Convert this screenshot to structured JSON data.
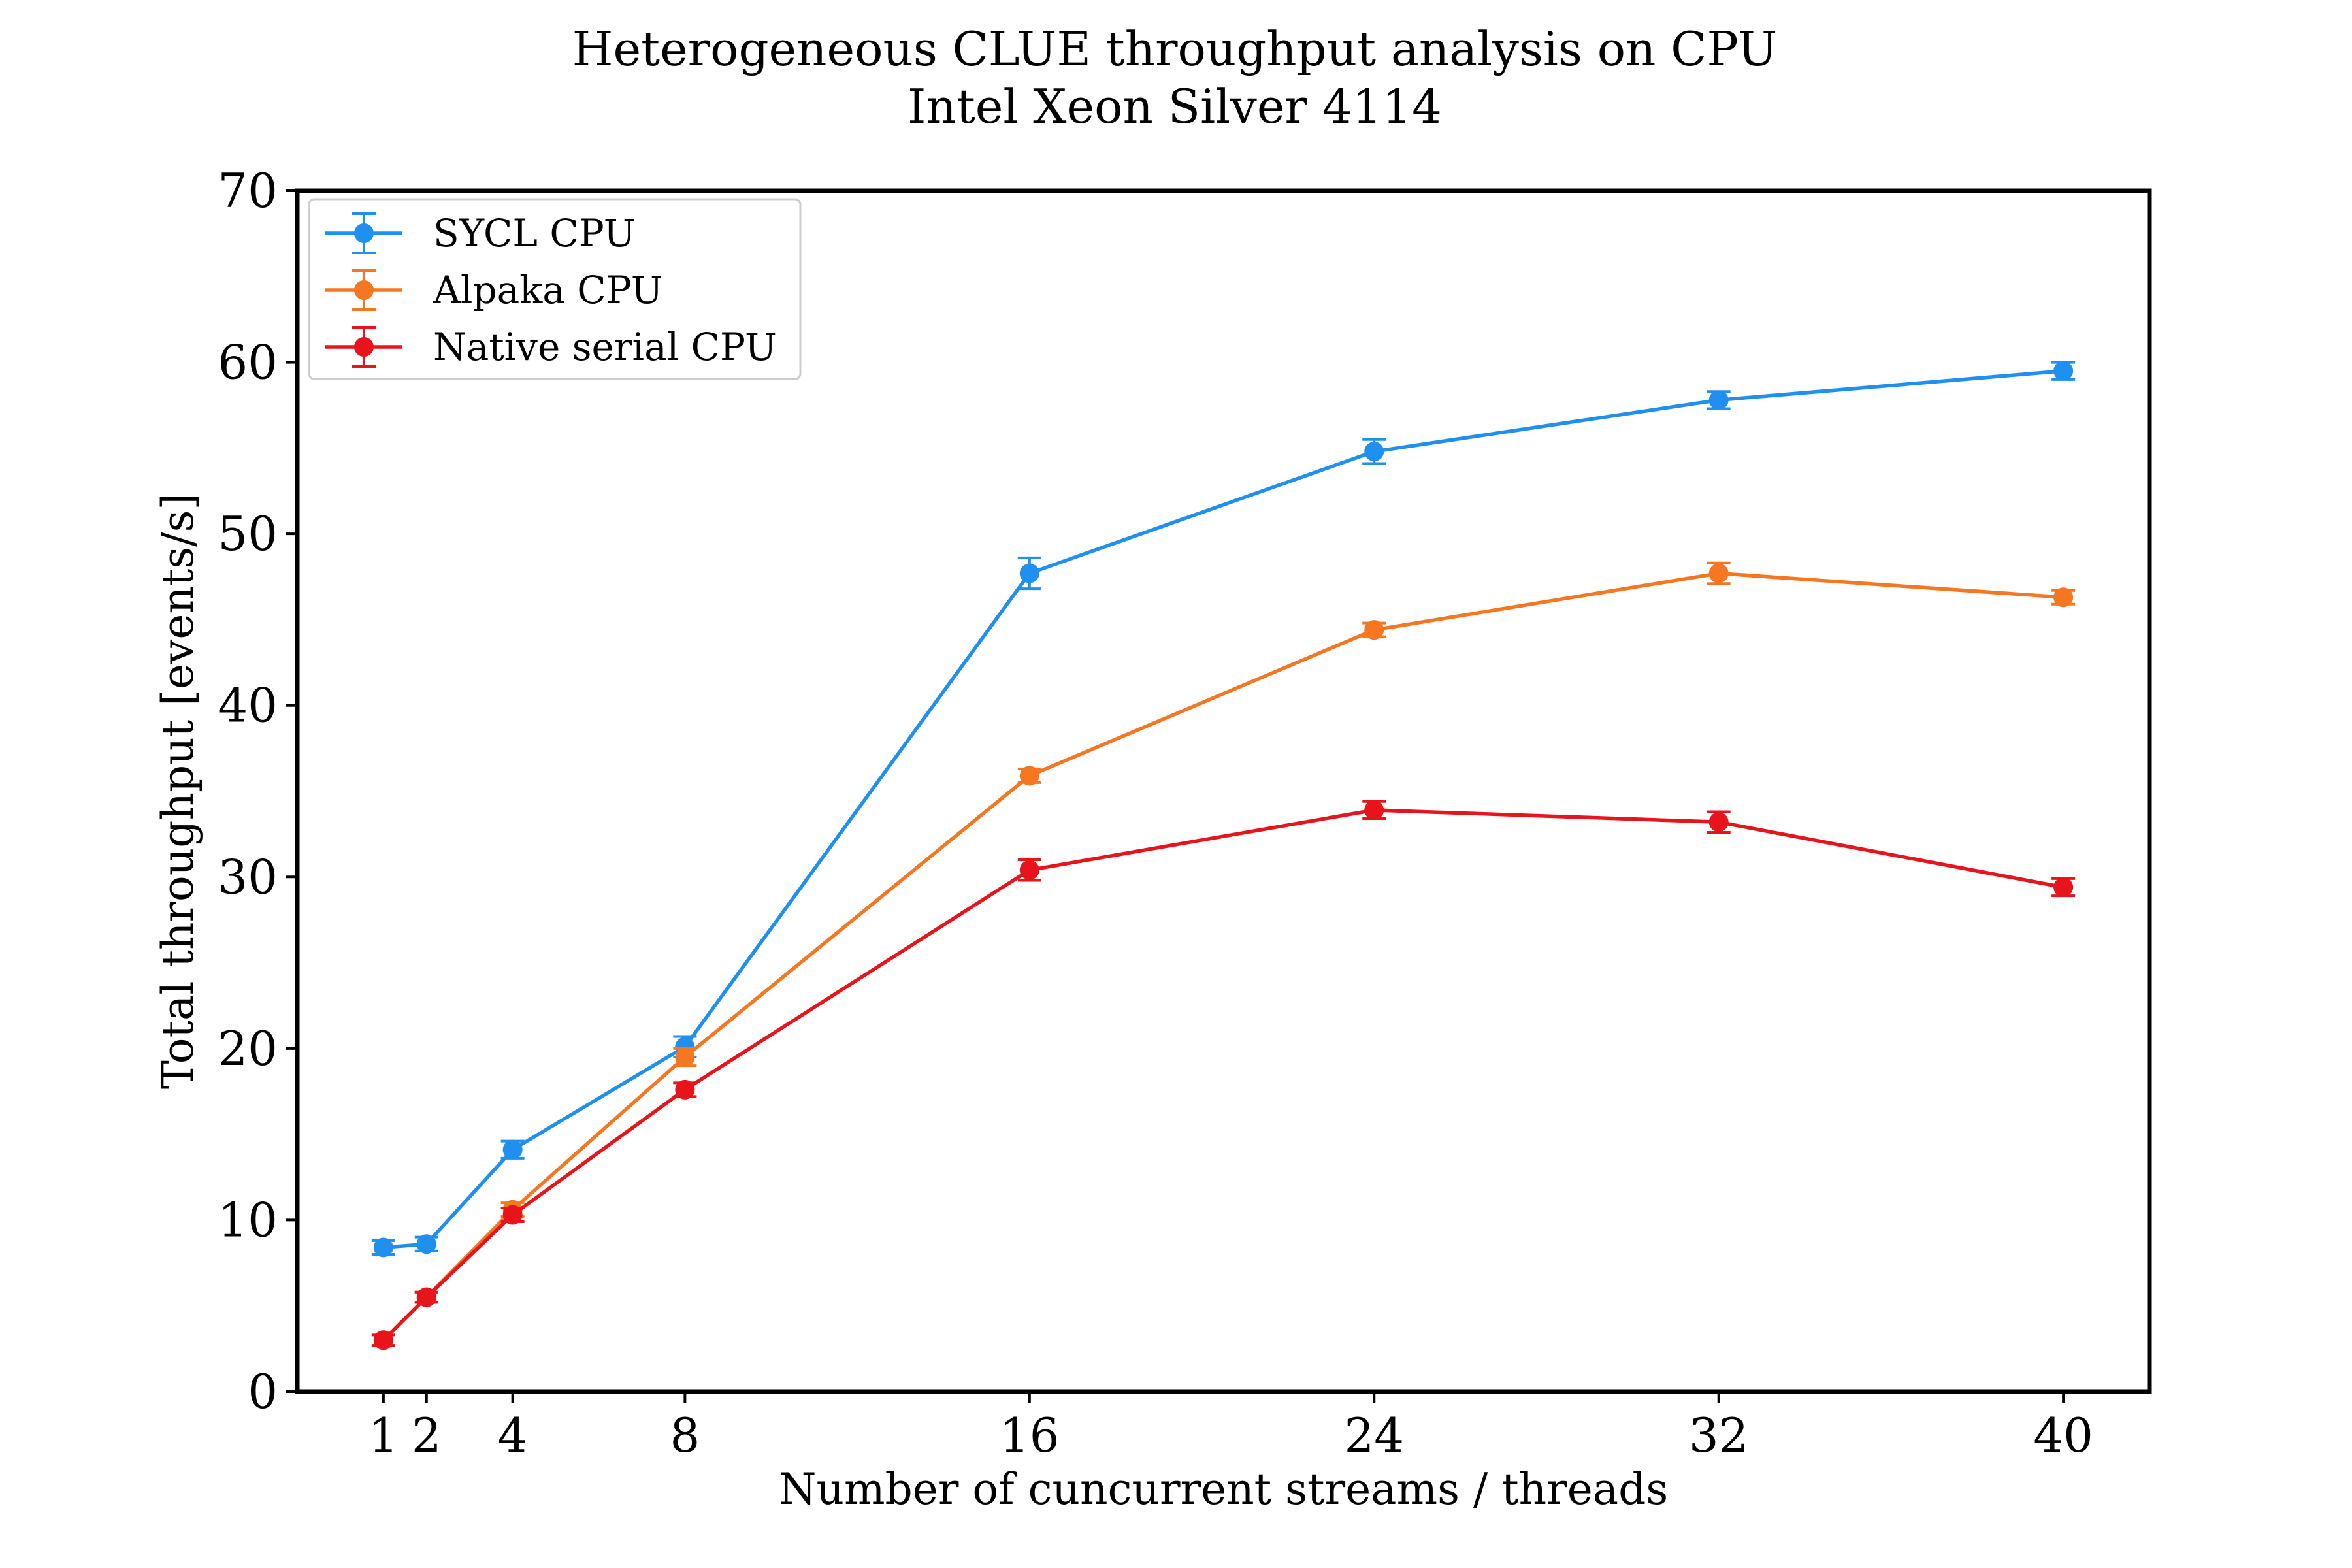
{
  "colors": {
    "axes": "#000000",
    "legend_border": "#cccccc",
    "background": "#ffffff"
  },
  "chart_data": {
    "type": "line",
    "title": "Heterogeneous CLUE throughput analysis on CPU",
    "subtitle": "Intel Xeon Silver 4114",
    "xlabel": "Number of cuncurrent streams / threads",
    "ylabel": "Total throughput [events/s]",
    "xlim": [
      -1,
      42
    ],
    "ylim": [
      0,
      70
    ],
    "x": [
      1,
      2,
      4,
      8,
      16,
      24,
      32,
      40
    ],
    "xticks": [
      1,
      2,
      4,
      8,
      16,
      24,
      32,
      40
    ],
    "yticks": [
      0,
      10,
      20,
      30,
      40,
      50,
      60,
      70
    ],
    "grid": false,
    "legend_position": "top-left",
    "series": [
      {
        "name": "SYCL CPU",
        "color": "#1f8ff0",
        "values": [
          8.4,
          8.6,
          14.1,
          20.1,
          47.7,
          54.8,
          57.8,
          59.5
        ],
        "errors": [
          0.4,
          0.4,
          0.5,
          0.6,
          0.9,
          0.7,
          0.5,
          0.5
        ]
      },
      {
        "name": "Alpaka CPU",
        "color": "#f57722",
        "values": [
          3.0,
          5.5,
          10.6,
          19.5,
          35.9,
          44.4,
          47.7,
          46.3
        ],
        "errors": [
          0.3,
          0.3,
          0.4,
          0.5,
          0.4,
          0.4,
          0.6,
          0.4
        ]
      },
      {
        "name": "Native serial CPU",
        "color": "#e8141b",
        "values": [
          3.0,
          5.5,
          10.3,
          17.6,
          30.4,
          33.9,
          33.2,
          29.4
        ],
        "errors": [
          0.3,
          0.3,
          0.4,
          0.4,
          0.6,
          0.5,
          0.6,
          0.5
        ]
      }
    ]
  }
}
